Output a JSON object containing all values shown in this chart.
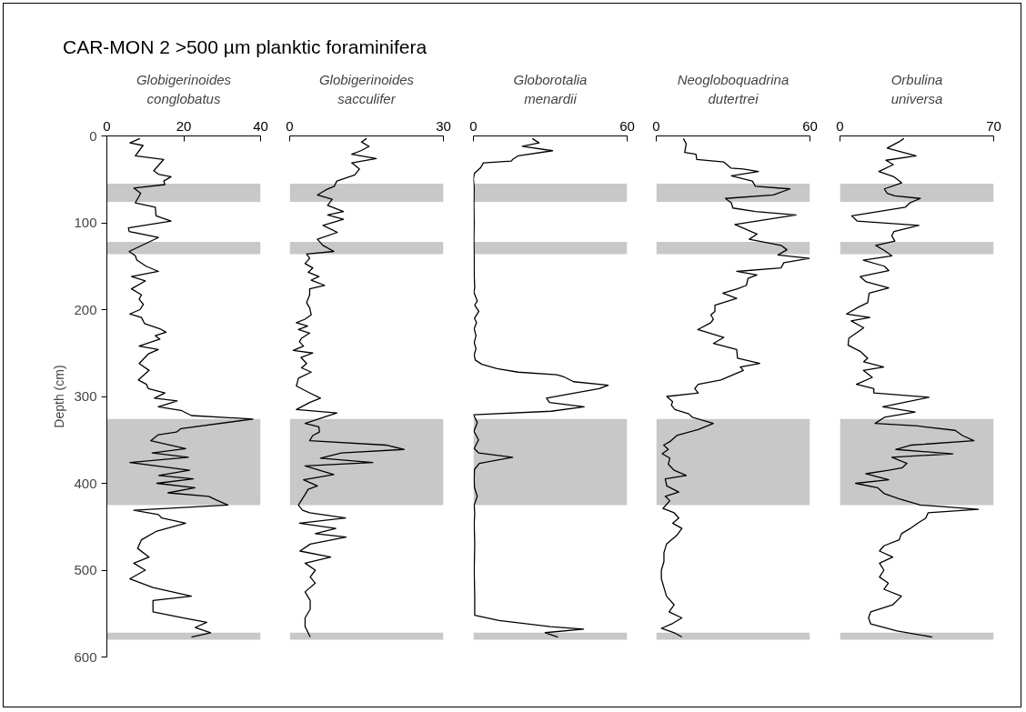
{
  "chart_data": [
    {
      "type": "line",
      "title": "CAR-MON 2 >500 µm planktic foraminifera",
      "xlabel": "Globigerinoides\nconglobatus",
      "ylabel": "Depth (cm)",
      "xlim": [
        0,
        40
      ],
      "xticks": [
        0,
        20,
        40
      ],
      "ylim": [
        600,
        0
      ],
      "yticks": [
        0,
        100,
        200,
        300,
        400,
        500,
        600
      ],
      "bands": [
        {
          "axis": "y",
          "from": 55,
          "to": 76,
          "color": "#c8c8c8"
        },
        {
          "axis": "y",
          "from": 122,
          "to": 136,
          "color": "#c8c8c8"
        },
        {
          "axis": "y",
          "from": 326,
          "to": 425,
          "color": "#c8c8c8"
        },
        {
          "axis": "y",
          "from": 572,
          "to": 580,
          "color": "#c8c8c8"
        }
      ],
      "series": [
        {
          "color": "#000000",
          "x": [
            8.6,
            6.0,
            9.4,
            7.4,
            14.8,
            12.2,
            13.4,
            16.7,
            14.8,
            15.1,
            7.0,
            8.8,
            7.4,
            12.6,
            12.8,
            16.7,
            5.6,
            5.8,
            13.4,
            5.8,
            7.4,
            7.8,
            10.2,
            13.4,
            6.4,
            10.0,
            6.4,
            9.0,
            8.4,
            9.5,
            8.6,
            6.0,
            9.0,
            9.8,
            13.8,
            15.4,
            12.6,
            13.8,
            8.4,
            13.4,
            10.8,
            8.4,
            11.0,
            8.2,
            10.3,
            10.8,
            15.1,
            12.4,
            18.3,
            13.4,
            19.3,
            22.0,
            38.0,
            19.3,
            18.1,
            13.4,
            11.4,
            20.5,
            11.8,
            21.2,
            6.0,
            21.5,
            13.5,
            22.5,
            13.0,
            22.9,
            15.9,
            26.5,
            28.9,
            31.5,
            7.0,
            13.4,
            14.3,
            20.5,
            13,
            9,
            8,
            11,
            7,
            10,
            6,
            12,
            22,
            12,
            12,
            20,
            26,
            23,
            27,
            22
          ],
          "values": [
            3,
            8,
            11,
            23,
            27,
            40,
            44,
            47,
            52,
            56,
            60,
            66,
            77,
            82,
            92,
            98,
            106,
            110,
            117,
            133,
            138,
            143,
            150,
            156,
            162,
            167,
            176,
            183,
            188,
            194,
            200,
            205,
            209,
            216,
            222,
            226,
            230,
            234,
            242,
            246,
            251,
            262,
            270,
            281,
            286,
            291,
            296,
            302,
            305,
            312,
            316,
            322,
            326,
            337,
            341,
            344,
            351,
            360,
            365,
            370,
            376,
            385,
            391,
            395,
            400,
            405,
            411,
            415,
            420,
            425,
            431,
            436,
            440,
            446,
            455,
            465,
            475,
            485,
            492,
            500,
            510,
            520,
            530,
            535,
            548,
            555,
            560,
            566,
            572,
            577
          ]
        }
      ]
    },
    {
      "type": "line",
      "xlabel": "Globigerinoides\nsacculifer",
      "xlim": [
        0,
        30
      ],
      "xticks": [
        0,
        30
      ],
      "ylim": [
        600,
        0
      ],
      "tick_labels": "x",
      "bands": [
        {
          "axis": "y",
          "from": 55,
          "to": 76,
          "color": "#c8c8c8"
        },
        {
          "axis": "y",
          "from": 122,
          "to": 136,
          "color": "#c8c8c8"
        },
        {
          "axis": "y",
          "from": 326,
          "to": 425,
          "color": "#c8c8c8"
        },
        {
          "axis": "y",
          "from": 572,
          "to": 580,
          "color": "#c8c8c8"
        }
      ],
      "series": [
        {
          "color": "#000000",
          "x": [
            15.0,
            14.0,
            15.5,
            13.9,
            12.1,
            16.9,
            12.1,
            13.6,
            12.7,
            9.2,
            8.7,
            7.1,
            5.4,
            8.3,
            7.4,
            10.5,
            7.4,
            10.5,
            6.5,
            9.3,
            5.4,
            6.5,
            8.6,
            3.3,
            3.9,
            3.0,
            4.5,
            3.6,
            5.7,
            4.2,
            6.8,
            3.9,
            3.9,
            3.3,
            3.9,
            4.2,
            3.0,
            1.3,
            3.5,
            1.7,
            3.9,
            2.3,
            1.9,
            2.7,
            0.7,
            4.5,
            2.2,
            3.3,
            2.3,
            4.2,
            1.7,
            1.3,
            3.6,
            6.0,
            3.9,
            1.3,
            9.2,
            3.0,
            5.7,
            5.8,
            4.5,
            3.9,
            18.8,
            22.3,
            10.1,
            6.0,
            16.2,
            3.0,
            8.6,
            2.7,
            5.4,
            3.6,
            3.0,
            1.7,
            2.5,
            3.9,
            10.9,
            1.9,
            9,
            5,
            11,
            4,
            2,
            8,
            3,
            5,
            4,
            5,
            3,
            4,
            4,
            3,
            3,
            4
          ],
          "values": [
            3,
            7,
            12,
            17,
            21,
            26,
            31,
            38,
            45,
            52,
            58,
            62,
            68,
            73,
            80,
            87,
            91,
            96,
            103,
            111,
            119,
            126,
            133,
            136,
            141,
            147,
            152,
            157,
            162,
            166,
            172,
            176,
            183,
            192,
            198,
            206,
            211,
            215,
            219,
            223,
            227,
            233,
            237,
            242,
            247,
            250,
            255,
            262,
            267,
            272,
            279,
            288,
            295,
            302,
            307,
            315,
            319,
            331,
            335,
            341,
            345,
            351,
            356,
            361,
            365,
            371,
            376,
            380,
            390,
            396,
            403,
            407,
            413,
            425,
            431,
            434,
            440,
            446,
            452,
            458,
            462,
            470,
            478,
            485,
            492,
            500,
            508,
            515,
            525,
            535,
            545,
            555,
            565,
            577
          ]
        }
      ]
    },
    {
      "type": "line",
      "xlabel": "Globorotalia\nmenardii",
      "xlim": [
        0,
        60
      ],
      "xticks": [
        0,
        60
      ],
      "ylim": [
        600,
        0
      ],
      "tick_labels": "x",
      "bands": [
        {
          "axis": "y",
          "from": 55,
          "to": 76,
          "color": "#c8c8c8"
        },
        {
          "axis": "y",
          "from": 122,
          "to": 136,
          "color": "#c8c8c8"
        },
        {
          "axis": "y",
          "from": 326,
          "to": 425,
          "color": "#c8c8c8"
        },
        {
          "axis": "y",
          "from": 572,
          "to": 580,
          "color": "#c8c8c8"
        }
      ],
      "series": [
        {
          "color": "#000000",
          "x": [
            23,
            25.6,
            19.1,
            30.9,
            17.4,
            15.3,
            14.8,
            3.9,
            2.7,
            0.4,
            0,
            0.3,
            0.2,
            0.3,
            0.2,
            0.3,
            0.3,
            0.5,
            0.2,
            1.5,
            0.5,
            2.1,
            0.4,
            1.2,
            0.3,
            1.0,
            0.3,
            1.0,
            0.3,
            0.7,
            3.3,
            9.2,
            17.4,
            32.6,
            35,
            39.1,
            52.6,
            49.1,
            39.7,
            28.5,
            29.7,
            43.2,
            30.3,
            0,
            1.5,
            0.2,
            2.0,
            0.3,
            2.0,
            15.3,
            2.3,
            0.4,
            0.3,
            0.4,
            1.5,
            0.3,
            0.5,
            0.3,
            0.5,
            0.3,
            0.5,
            0.5,
            10,
            30,
            43,
            28,
            33
          ],
          "values": [
            3,
            8,
            12,
            17,
            23,
            27,
            29,
            31,
            37,
            43,
            49,
            60,
            80,
            100,
            120,
            140,
            160,
            175,
            180,
            190,
            195,
            202,
            210,
            215,
            222,
            230,
            238,
            245,
            252,
            258,
            263,
            268,
            272,
            275,
            277,
            283,
            287,
            291,
            296,
            302,
            307,
            312,
            317,
            321,
            330,
            340,
            350,
            360,
            365,
            370,
            377,
            384,
            395,
            405,
            415,
            425,
            435,
            446,
            470,
            500,
            530,
            552,
            558,
            565,
            568,
            572,
            577
          ]
        }
      ]
    },
    {
      "type": "line",
      "xlabel": "Neogloboquadrina\ndutertrei",
      "xlim": [
        0,
        60
      ],
      "xticks": [
        0,
        60
      ],
      "ylim": [
        600,
        0
      ],
      "tick_labels": "x",
      "bands": [
        {
          "axis": "y",
          "from": 55,
          "to": 76,
          "color": "#c8c8c8"
        },
        {
          "axis": "y",
          "from": 122,
          "to": 136,
          "color": "#c8c8c8"
        },
        {
          "axis": "y",
          "from": 326,
          "to": 425,
          "color": "#c8c8c8"
        },
        {
          "axis": "y",
          "from": 572,
          "to": 580,
          "color": "#c8c8c8"
        }
      ],
      "series": [
        {
          "color": "#000000",
          "x": [
            10.6,
            11.7,
            11.1,
            15.5,
            15.8,
            26.4,
            29.1,
            34.0,
            39.9,
            29.3,
            37.5,
            38.7,
            52.2,
            45.7,
            27.0,
            29.3,
            29.9,
            38.7,
            54.5,
            30.7,
            39.3,
            36.3,
            48.7,
            51.0,
            47.5,
            59.8,
            49.8,
            48.7,
            31.4,
            39.3,
            35.8,
            35.2,
            31.7,
            26.0,
            31.4,
            22.9,
            22.9,
            21.3,
            22.3,
            21.3,
            16.2,
            26.4,
            22.3,
            31.4,
            31.7,
            40.4,
            32.8,
            34.0,
            25.2,
            16.4,
            15.0,
            16.4,
            4.1,
            6.4,
            5.9,
            7.3,
            12.7,
            14.1,
            22.3,
            16.4,
            8.0,
            5.3,
            2.9,
            4.7,
            2.3,
            5.3,
            4.7,
            7.0,
            11.7,
            3.5,
            4.1,
            8.8,
            3.5,
            5.3,
            2.6,
            7.0,
            8.8,
            6.4,
            10,
            8,
            4,
            3,
            3,
            2,
            2,
            3,
            4,
            7,
            5,
            10,
            6,
            2,
            7,
            10
          ],
          "values": [
            3,
            9,
            19,
            21,
            27,
            30,
            37,
            38,
            41,
            46,
            52,
            58,
            61,
            68,
            72,
            77,
            83,
            87,
            91,
            102,
            113,
            119,
            126,
            131,
            137,
            141,
            146,
            152,
            156,
            160,
            164,
            172,
            176,
            181,
            187,
            195,
            202,
            206,
            211,
            215,
            223,
            232,
            239,
            246,
            256,
            262,
            266,
            270,
            281,
            286,
            291,
            296,
            300,
            306,
            310,
            315,
            320,
            324,
            331,
            338,
            345,
            352,
            356,
            361,
            366,
            371,
            378,
            385,
            391,
            395,
            403,
            410,
            415,
            420,
            429,
            434,
            440,
            446,
            452,
            460,
            470,
            480,
            490,
            500,
            510,
            520,
            530,
            540,
            548,
            555,
            562,
            567,
            572,
            577
          ]
        }
      ]
    },
    {
      "type": "line",
      "xlabel": "Orbulina\nuniversa",
      "xlim": [
        0,
        70
      ],
      "xticks": [
        0,
        70
      ],
      "ylim": [
        600,
        0
      ],
      "tick_labels": "x",
      "bands": [
        {
          "axis": "y",
          "from": 55,
          "to": 76,
          "color": "#c8c8c8"
        },
        {
          "axis": "y",
          "from": 122,
          "to": 136,
          "color": "#c8c8c8"
        },
        {
          "axis": "y",
          "from": 326,
          "to": 425,
          "color": "#c8c8c8"
        },
        {
          "axis": "y",
          "from": 572,
          "to": 580,
          "color": "#c8c8c8"
        }
      ],
      "series": [
        {
          "color": "#000000",
          "x": [
            29.1,
            26.7,
            21.5,
            34.6,
            20.9,
            24.3,
            17.7,
            24.6,
            28.1,
            20.2,
            21.5,
            25.0,
            36.6,
            31.8,
            29.8,
            5.3,
            7.8,
            35.9,
            24.6,
            23.6,
            25.0,
            16.3,
            20.2,
            23.6,
            10.6,
            20.2,
            22.2,
            9.2,
            11.9,
            22.2,
            13.3,
            12.6,
            8.5,
            3.0,
            13.6,
            5.1,
            10.8,
            4.0,
            3.7,
            9.2,
            12.6,
            10.8,
            19.9,
            10.6,
            14.7,
            7.5,
            15.4,
            15.4,
            40.5,
            19.5,
            34.2,
            20.2,
            16.0,
            35.3,
            52.4,
            55.8,
            61.0,
            32.5,
            25.4,
            51.4,
            23.6,
            30.5,
            28.4,
            22.2,
            11.7,
            22.2,
            7.1,
            17.1,
            20.2,
            27.0,
            36.6,
            63.0,
            40.1,
            39.1,
            35.3,
            32,
            28,
            27,
            20,
            18,
            24,
            18,
            20,
            18,
            22,
            20,
            28,
            24,
            14,
            13,
            14,
            26,
            42
          ],
          "values": [
            3,
            7,
            14,
            23,
            28,
            33,
            41,
            47,
            54,
            61,
            66,
            69,
            72,
            77,
            82,
            92,
            98,
            103,
            110,
            115,
            121,
            126,
            132,
            138,
            143,
            150,
            155,
            162,
            168,
            175,
            181,
            192,
            197,
            205,
            209,
            213,
            221,
            233,
            241,
            248,
            256,
            260,
            266,
            270,
            278,
            286,
            291,
            296,
            301,
            312,
            318,
            324,
            331,
            334,
            339,
            345,
            351,
            356,
            361,
            366,
            370,
            377,
            382,
            385,
            389,
            396,
            400,
            405,
            412,
            418,
            425,
            430,
            434,
            440,
            446,
            452,
            458,
            465,
            472,
            478,
            485,
            492,
            500,
            508,
            515,
            522,
            530,
            540,
            548,
            555,
            562,
            570,
            577
          ]
        }
      ]
    }
  ]
}
